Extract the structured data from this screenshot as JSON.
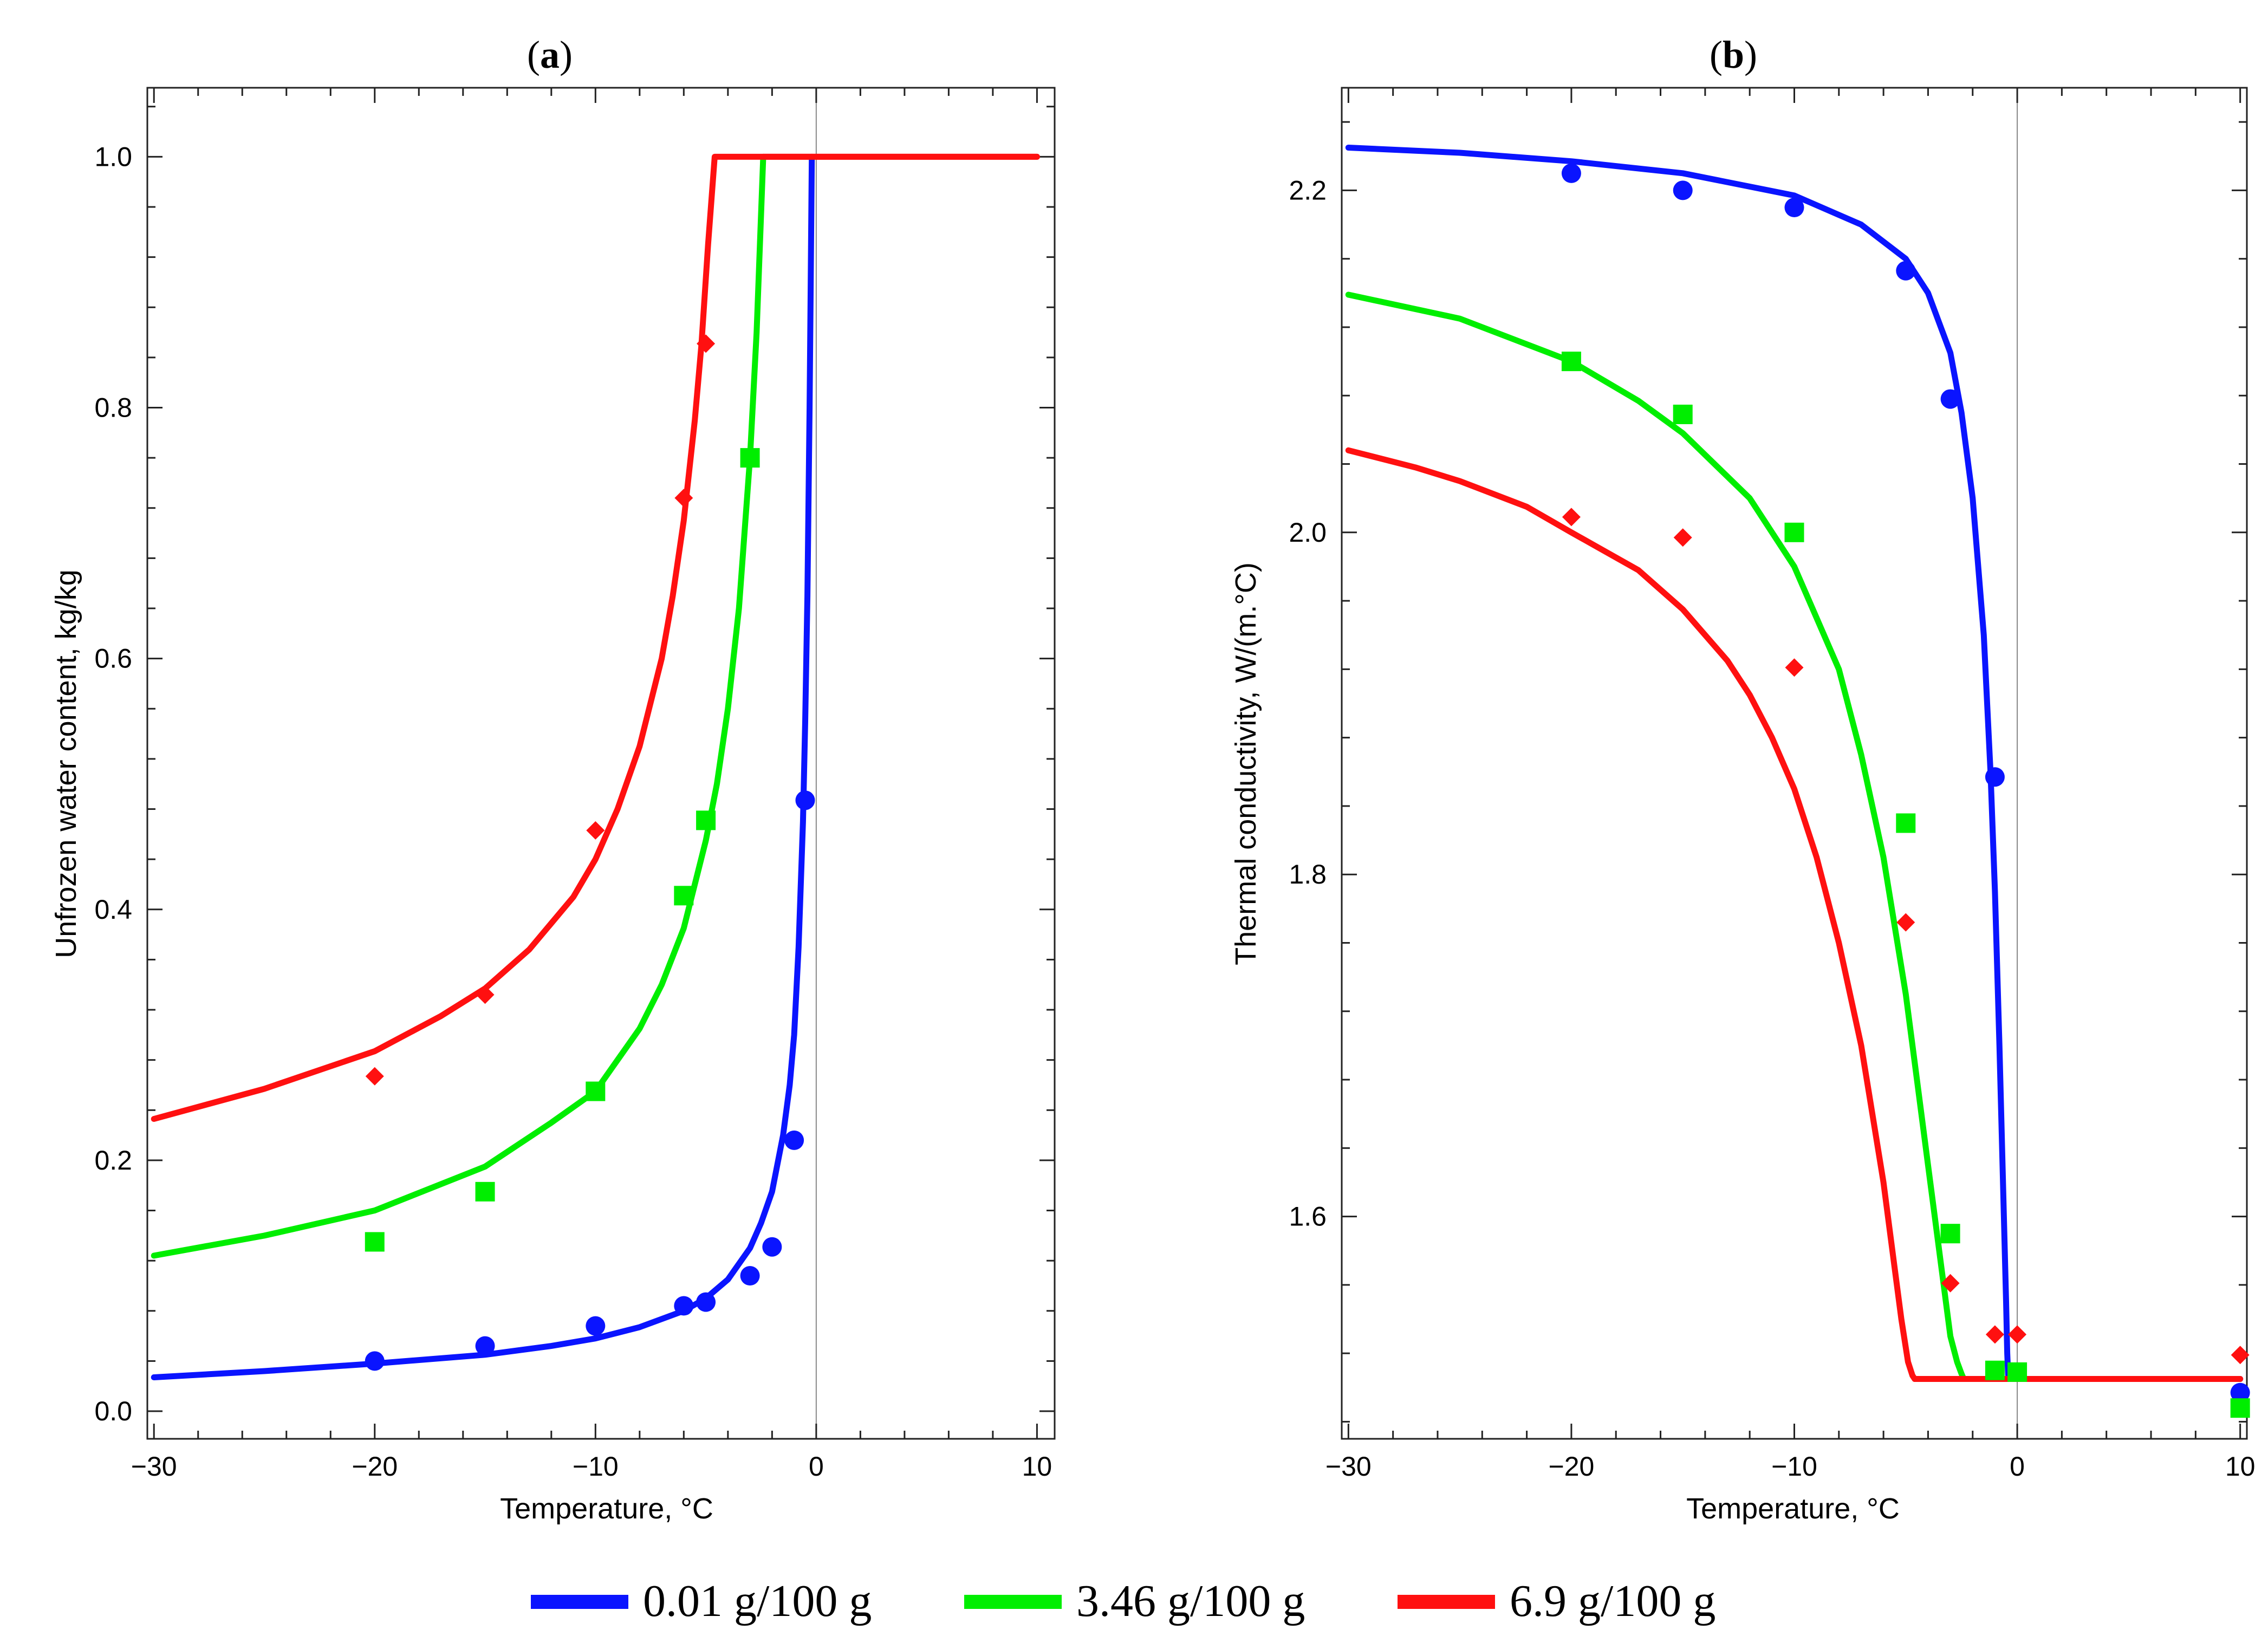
{
  "figure": {
    "legend": [
      {
        "name": "0.01 g/100 g",
        "color": "#0a14ff"
      },
      {
        "name": "3.46 g/100 g",
        "color": "#00ee00"
      },
      {
        "name": "6.9 g/100 g",
        "color": "#ff1010"
      }
    ]
  },
  "chart_data": [
    {
      "type": "line",
      "panel": "a",
      "title_open": "(",
      "title_letter": "a",
      "title_close": ")",
      "xlabel": "Temperature, °C",
      "ylabel": "Unfrozen water content, kg/kg",
      "xlim": [
        -30.3,
        10.8
      ],
      "ylim": [
        -0.022,
        1.055
      ],
      "xticks": [
        -30,
        -20,
        -10,
        0,
        10
      ],
      "xtick_labels": [
        "−30",
        "−20",
        "−10",
        "0",
        "10"
      ],
      "yticks": [
        0.0,
        0.2,
        0.4,
        0.6,
        0.8,
        1.0
      ],
      "ytick_labels": [
        "0.0",
        "0.2",
        "0.4",
        "0.6",
        "0.8",
        "1.0"
      ],
      "zero_line_x": 0,
      "series": [
        {
          "name": "0.01 g/100 g",
          "color": "#0a14ff",
          "marker": "circle",
          "line_x": [
            -30,
            -25,
            -20,
            -15,
            -12,
            -10,
            -8,
            -6,
            -5,
            -4,
            -3,
            -2.5,
            -2,
            -1.5,
            -1.2,
            -1,
            -0.8,
            -0.6,
            -0.5,
            -0.4,
            -0.3,
            -0.25,
            -0.2
          ],
          "line_y": [
            0.027,
            0.032,
            0.038,
            0.045,
            0.052,
            0.058,
            0.067,
            0.08,
            0.09,
            0.105,
            0.13,
            0.15,
            0.175,
            0.22,
            0.26,
            0.3,
            0.37,
            0.47,
            0.55,
            0.65,
            0.8,
            0.9,
            1.0
          ],
          "points_x": [
            -20,
            -15,
            -10,
            -6,
            -5,
            -3,
            -2,
            -1,
            -0.5
          ],
          "points_y": [
            0.04,
            0.052,
            0.068,
            0.084,
            0.087,
            0.108,
            0.131,
            0.216,
            0.487
          ]
        },
        {
          "name": "3.46 g/100 g",
          "color": "#00ee00",
          "marker": "square",
          "line_x": [
            -30,
            -25,
            -20,
            -15,
            -12,
            -10,
            -8,
            -7,
            -6,
            -5,
            -4.5,
            -4,
            -3.5,
            -3,
            -2.7,
            -2.4
          ],
          "line_y": [
            0.124,
            0.14,
            0.16,
            0.195,
            0.23,
            0.255,
            0.305,
            0.34,
            0.385,
            0.455,
            0.5,
            0.56,
            0.64,
            0.76,
            0.86,
            1.0
          ],
          "points_x": [
            -20,
            -15,
            -10,
            -6,
            -5,
            -3
          ],
          "points_y": [
            0.135,
            0.175,
            0.255,
            0.411,
            0.471,
            0.76
          ]
        },
        {
          "name": "6.9 g/100 g",
          "color": "#ff1010",
          "marker": "diamond",
          "line_x": [
            -30,
            -25,
            -20,
            -17,
            -15,
            -13,
            -11,
            -10,
            -9,
            -8,
            -7,
            -6.5,
            -6,
            -5.5,
            -5.2,
            -4.9,
            -4.6,
            10
          ],
          "line_y": [
            0.233,
            0.257,
            0.287,
            0.315,
            0.337,
            0.368,
            0.41,
            0.44,
            0.48,
            0.53,
            0.6,
            0.65,
            0.71,
            0.79,
            0.85,
            0.93,
            1.0,
            1.0
          ],
          "points_x": [
            -20,
            -15,
            -10,
            -6,
            -5
          ],
          "points_y": [
            0.267,
            0.332,
            0.463,
            0.728,
            0.851
          ]
        }
      ],
      "plateau": {
        "x_from": -2.4,
        "x_to": 10,
        "y": 1.0
      }
    },
    {
      "type": "line",
      "panel": "b",
      "title_open": "(",
      "title_letter": "b",
      "title_close": ")",
      "xlabel": "Temperature, °C",
      "ylabel": "Thermal conductivity, W/(m.°C)",
      "xlim": [
        -30.3,
        10.3
      ],
      "ylim": [
        1.47,
        2.26
      ],
      "xticks": [
        -30,
        -20,
        -10,
        0,
        10
      ],
      "xtick_labels": [
        "−30",
        "−20",
        "−10",
        "0",
        "10"
      ],
      "yticks": [
        1.6,
        1.8,
        2.0,
        2.2
      ],
      "ytick_labels": [
        "1.6",
        "1.8",
        "2.0",
        "2.2"
      ],
      "zero_line_x": 0,
      "series": [
        {
          "name": "0.01 g/100 g",
          "color": "#0a14ff",
          "marker": "circle",
          "line_x": [
            -30,
            -25,
            -20,
            -15,
            -10,
            -7,
            -5,
            -4,
            -3,
            -2.5,
            -2,
            -1.5,
            -1.2,
            -1,
            -0.8,
            -0.6,
            -0.5,
            -0.45,
            -0.4,
            10
          ],
          "line_y": [
            2.225,
            2.222,
            2.217,
            2.21,
            2.197,
            2.18,
            2.16,
            2.14,
            2.105,
            2.07,
            2.02,
            1.94,
            1.86,
            1.79,
            1.7,
            1.6,
            1.55,
            1.52,
            1.505,
            1.505
          ],
          "points_x": [
            -20,
            -15,
            -10,
            -5,
            -3,
            -1,
            10
          ],
          "points_y": [
            2.21,
            2.2,
            2.19,
            2.153,
            2.078,
            1.857,
            1.497
          ]
        },
        {
          "name": "3.46 g/100 g",
          "color": "#00ee00",
          "marker": "square",
          "line_x": [
            -30,
            -25,
            -20,
            -17,
            -15,
            -12,
            -10,
            -8,
            -7,
            -6,
            -5,
            -4.5,
            -4,
            -3.5,
            -3,
            -2.7,
            -2.5,
            -2.4
          ],
          "line_y": [
            2.139,
            2.125,
            2.1,
            2.077,
            2.058,
            2.02,
            1.98,
            1.92,
            1.87,
            1.81,
            1.73,
            1.68,
            1.63,
            1.58,
            1.53,
            1.515,
            1.508,
            1.505
          ],
          "points_x": [
            -20,
            -15,
            -10,
            -5,
            -3,
            -1,
            0,
            10
          ],
          "points_y": [
            2.1,
            2.069,
            2.0,
            1.83,
            1.59,
            1.51,
            1.509,
            1.488
          ]
        },
        {
          "name": "6.9 g/100 g",
          "color": "#ff1010",
          "marker": "diamond",
          "line_x": [
            -30,
            -27,
            -25,
            -22,
            -20,
            -17,
            -15,
            -13,
            -12,
            -11,
            -10,
            -9,
            -8,
            -7,
            -6.5,
            -6,
            -5.5,
            -5.2,
            -4.9,
            -4.7,
            -4.6
          ],
          "line_y": [
            2.048,
            2.038,
            2.03,
            2.015,
            2.0,
            1.978,
            1.955,
            1.925,
            1.905,
            1.88,
            1.85,
            1.81,
            1.76,
            1.7,
            1.66,
            1.62,
            1.57,
            1.54,
            1.515,
            1.507,
            1.505
          ],
          "points_x": [
            -20,
            -15,
            -10,
            -5,
            -3,
            -1,
            0,
            10
          ],
          "points_y": [
            2.009,
            1.997,
            1.921,
            1.772,
            1.561,
            1.531,
            1.531,
            1.519
          ]
        }
      ],
      "plateau": {
        "x_from": -4.6,
        "x_to": 10,
        "y": 1.505
      }
    }
  ]
}
